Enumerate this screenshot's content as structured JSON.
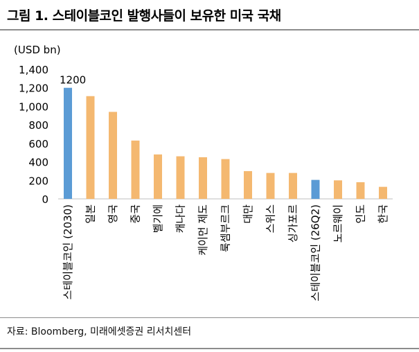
{
  "title": "그림 1. 스테이블코인 발행사들이 보유한 미국 국채",
  "source": "자료: Bloomberg, 미래에셋증권 리서치센터",
  "chart_data": {
    "type": "bar",
    "ylabel": "(USD bn)",
    "ylim": [
      0,
      1400
    ],
    "yticks": [
      0,
      200,
      400,
      600,
      800,
      1000,
      1200,
      1400
    ],
    "ytick_labels": [
      "0",
      "200",
      "400",
      "600",
      "800",
      "1,000",
      "1,200",
      "1,400"
    ],
    "grid": false,
    "categories": [
      "스테이블코인 (2030)",
      "일본",
      "영국",
      "중국",
      "벨기에",
      "캐나다",
      "케이먼 제도",
      "룩셈부르크",
      "대만",
      "스위스",
      "싱가포르",
      "스테이블코인 (26Q2)",
      "노르웨이",
      "인도",
      "한국"
    ],
    "values": [
      1200,
      1110,
      940,
      630,
      480,
      460,
      450,
      430,
      300,
      280,
      280,
      205,
      200,
      180,
      130
    ],
    "colors": [
      "#5b9bd5",
      "#f4b870",
      "#f4b870",
      "#f4b870",
      "#f4b870",
      "#f4b870",
      "#f4b870",
      "#f4b870",
      "#f4b870",
      "#f4b870",
      "#f4b870",
      "#5b9bd5",
      "#f4b870",
      "#f4b870",
      "#f4b870"
    ],
    "data_labels": [
      {
        "index": 0,
        "text": "1200"
      }
    ]
  }
}
